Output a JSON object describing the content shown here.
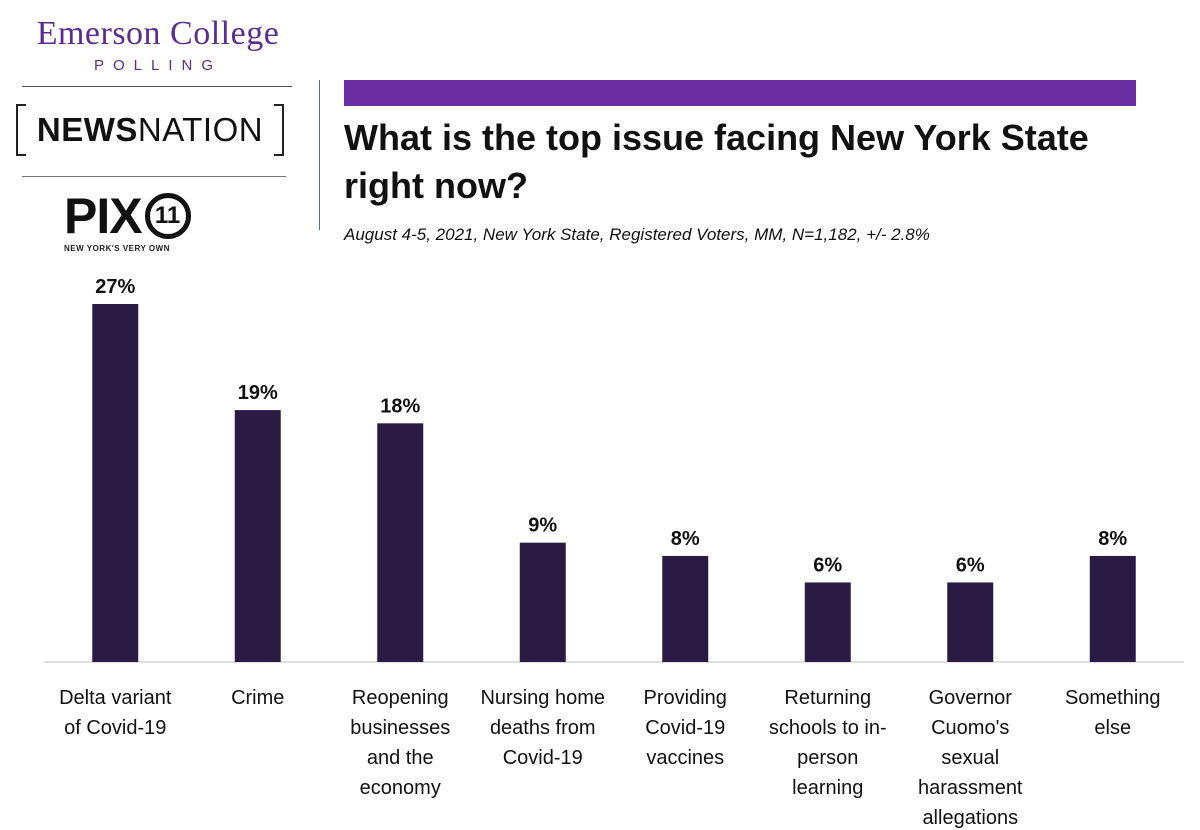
{
  "branding": {
    "emerson_name": "Emerson College",
    "emerson_sub": "POLLING",
    "newsnation_bold": "NEWS",
    "newsnation_light": "NATION",
    "pix_text": "PIX",
    "pix_number": "11",
    "pix_tagline": "NEW YORK'S VERY OWN"
  },
  "header": {
    "title": "What is the top issue facing New York State right now?",
    "subtitle": "August 4-5, 2021, New York State, Registered Voters, MM,  N=1,182,  +/- 2.8%"
  },
  "colors": {
    "accent": "#6b2fa3",
    "bar": "#2a1b44",
    "brand": "#5b2d8e"
  },
  "chart_data": {
    "type": "bar",
    "categories": [
      [
        "Delta variant",
        "of Covid-19"
      ],
      [
        "Crime"
      ],
      [
        "Reopening",
        "businesses",
        "and the",
        "economy"
      ],
      [
        "Nursing home",
        "deaths from",
        "Covid-19"
      ],
      [
        "Providing",
        "Covid-19",
        "vaccines"
      ],
      [
        "Returning",
        "schools to in-",
        "person",
        "learning"
      ],
      [
        "Governor",
        "Cuomo's",
        "sexual",
        "harassment",
        "allegations"
      ],
      [
        "Something",
        "else"
      ]
    ],
    "values": [
      27,
      19,
      18,
      9,
      8,
      6,
      6,
      8
    ],
    "value_labels": [
      "27%",
      "19%",
      "18%",
      "9%",
      "8%",
      "6%",
      "6%",
      "8%"
    ],
    "ylim": [
      0,
      27
    ],
    "grid": false
  }
}
